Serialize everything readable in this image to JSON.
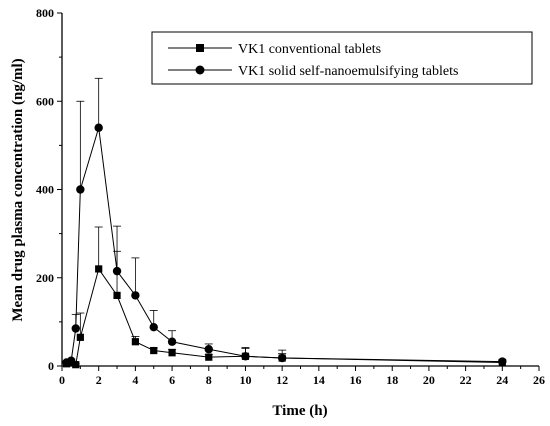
{
  "chart_data": {
    "type": "line",
    "xlabel": "Time (h)",
    "ylabel": "Mean drug plasma concentration (ng/ml)",
    "xlim": [
      0,
      26
    ],
    "ylim": [
      0,
      800
    ],
    "xticks": [
      0,
      2,
      4,
      6,
      8,
      10,
      12,
      14,
      16,
      18,
      20,
      22,
      24,
      26
    ],
    "yticks": [
      0,
      200,
      400,
      600,
      800
    ],
    "grid": false,
    "legend_position": "top-right",
    "series": [
      {
        "name": "VK1 conventional tablets",
        "marker": "square",
        "x": [
          0.25,
          0.5,
          0.75,
          1,
          2,
          3,
          4,
          5,
          6,
          8,
          10,
          12,
          24
        ],
        "y": [
          5,
          8,
          3,
          65,
          220,
          160,
          55,
          35,
          30,
          20,
          22,
          18,
          8
        ],
        "err": [
          2,
          3,
          2,
          55,
          95,
          100,
          12,
          6,
          8,
          6,
          18,
          10,
          4
        ]
      },
      {
        "name": "VK1 solid self-nanoemulsifying tablets",
        "marker": "circle",
        "x": [
          0.25,
          0.5,
          0.75,
          1,
          2,
          3,
          4,
          5,
          6,
          8,
          10,
          12,
          24
        ],
        "y": [
          8,
          12,
          85,
          400,
          540,
          215,
          160,
          88,
          55,
          38,
          22,
          18,
          10
        ],
        "err": [
          3,
          4,
          32,
          200,
          112,
          102,
          85,
          38,
          25,
          12,
          20,
          18,
          4
        ]
      }
    ]
  }
}
